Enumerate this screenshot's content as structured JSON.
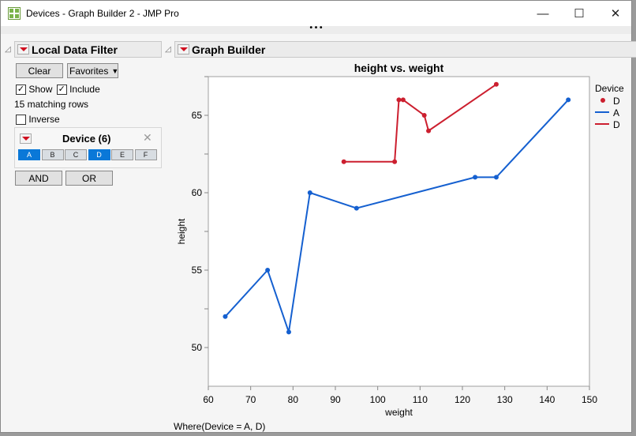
{
  "window": {
    "title": "Devices - Graph Builder 2 - JMP Pro",
    "minimize": "—",
    "maximize": "☐",
    "close": "✕",
    "more": "• • •"
  },
  "filter": {
    "title": "Local Data Filter",
    "clear": "Clear",
    "favorites": "Favorites",
    "show": "Show",
    "show_checked": true,
    "include": "Include",
    "include_checked": true,
    "matching": "15 matching rows",
    "inverse": "Inverse",
    "inverse_checked": false,
    "column": {
      "title": "Device (6)",
      "levels": [
        {
          "label": "A",
          "selected": true
        },
        {
          "label": "B",
          "selected": false
        },
        {
          "label": "C",
          "selected": false
        },
        {
          "label": "D",
          "selected": true
        },
        {
          "label": "E",
          "selected": false
        },
        {
          "label": "F",
          "selected": false
        }
      ]
    },
    "and": "AND",
    "or": "OR"
  },
  "graph": {
    "title": "Graph Builder",
    "where": "Where(Device = A, D)"
  },
  "chart_data": {
    "type": "line",
    "title": "height vs. weight",
    "xlabel": "weight",
    "ylabel": "height",
    "xlim": [
      60,
      150
    ],
    "ylim": [
      47.5,
      67.5
    ],
    "xticks": [
      "60",
      "70",
      "80",
      "90",
      "100",
      "110",
      "120",
      "130",
      "140",
      "150"
    ],
    "yticks": [
      "50",
      "55",
      "60",
      "65"
    ],
    "grid": false,
    "legend_position": "right",
    "legend": {
      "title": "Device",
      "items": [
        {
          "label": "D",
          "kind": "point",
          "color": "#cc1f2f"
        },
        {
          "label": "A",
          "kind": "line",
          "color": "#1560d0"
        },
        {
          "label": "D",
          "kind": "line",
          "color": "#cc1f2f"
        }
      ]
    },
    "series": [
      {
        "name": "A",
        "color": "#1560d0",
        "x": [
          64,
          74,
          79,
          84,
          95,
          123,
          128,
          145
        ],
        "y": [
          52,
          55,
          51,
          60,
          59,
          61,
          61,
          66
        ]
      },
      {
        "name": "D",
        "color": "#cc1f2f",
        "x": [
          92,
          104,
          105,
          106,
          111,
          112,
          128
        ],
        "y": [
          62,
          62,
          66,
          66,
          65,
          64,
          67
        ]
      }
    ]
  }
}
